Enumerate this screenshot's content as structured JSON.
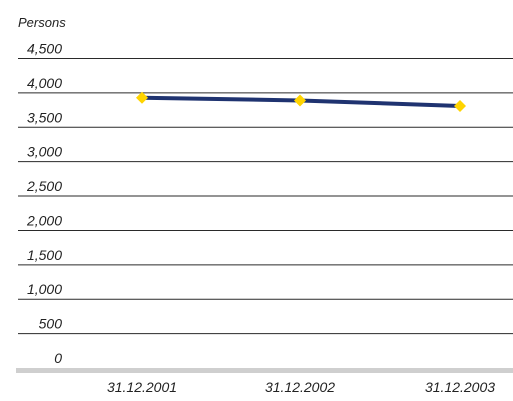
{
  "chart_data": {
    "type": "line",
    "ylabel": "Persons",
    "categories": [
      "31.12.2001",
      "31.12.2002",
      "31.12.2003"
    ],
    "y_ticks": [
      {
        "value": 4500,
        "label": "4,500"
      },
      {
        "value": 4000,
        "label": "4,000"
      },
      {
        "value": 3500,
        "label": "3,500"
      },
      {
        "value": 3000,
        "label": "3,000"
      },
      {
        "value": 2500,
        "label": "2,500"
      },
      {
        "value": 2000,
        "label": "2,000"
      },
      {
        "value": 1500,
        "label": "1,500"
      },
      {
        "value": 1000,
        "label": "1,000"
      },
      {
        "value": 500,
        "label": "500"
      },
      {
        "value": 0,
        "label": "0"
      }
    ],
    "ylim": [
      0,
      4500
    ],
    "grid": true,
    "series": [
      {
        "values": [
          3930,
          3890,
          3810
        ]
      }
    ],
    "colors": {
      "line": "#1f3370",
      "marker": "#ffd400",
      "grid": "#2a2a2a",
      "baseline": "#cfcfcf",
      "text": "#222222"
    }
  }
}
